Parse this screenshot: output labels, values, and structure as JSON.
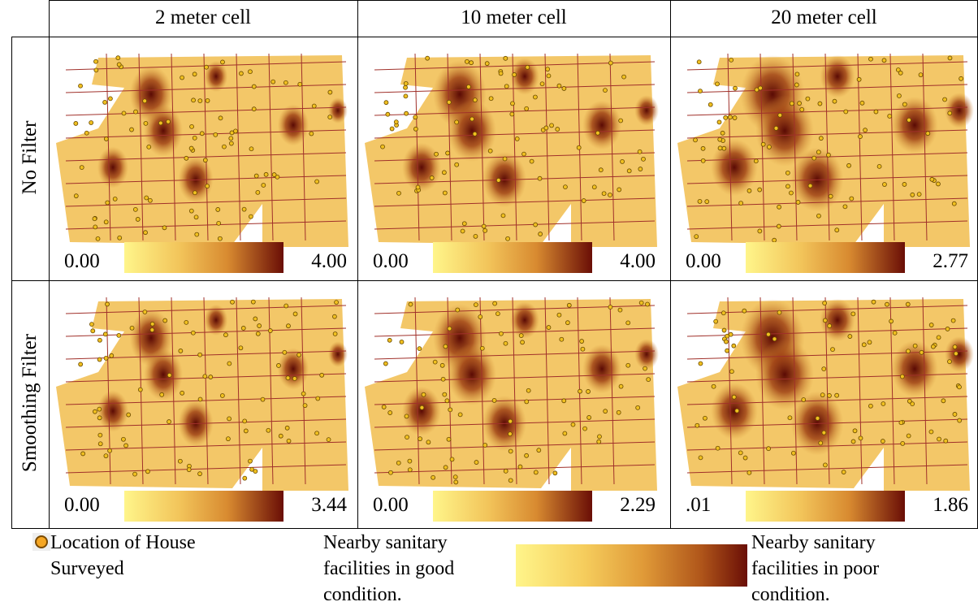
{
  "header": {
    "columns": [
      "2 meter cell",
      "10 meter cell",
      "20 meter cell"
    ]
  },
  "rows": [
    {
      "label": "No Filter",
      "cells": [
        {
          "min": "0.00",
          "max": "4.00"
        },
        {
          "min": "0.00",
          "max": "4.00"
        },
        {
          "min": "0.00",
          "max": "2.77"
        }
      ]
    },
    {
      "label": "Smoothing Filter",
      "cells": [
        {
          "min": "0.00",
          "max": "3.44"
        },
        {
          "min": "0.00",
          "max": "2.29"
        },
        {
          "min": ".01",
          "max": "1.86"
        }
      ]
    }
  ],
  "legend": {
    "marker_label": "Location of House Surveyed",
    "good_label": "Nearby sanitary facilities in good condition.",
    "poor_label": "Nearby sanitary facilities in poor condition."
  }
}
